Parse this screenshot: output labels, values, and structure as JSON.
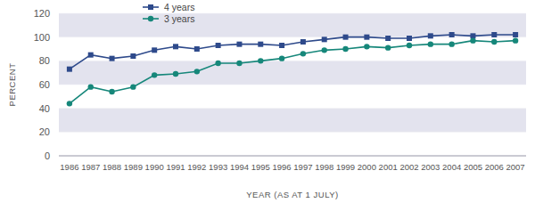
{
  "chart_data": {
    "type": "line",
    "x_label": "YEAR (AS AT 1 JULY)",
    "y_label": "PERCENT",
    "categories": [
      "1986",
      "1987",
      "1988",
      "1989",
      "1990",
      "1991",
      "1992",
      "1993",
      "1994",
      "1995",
      "1996",
      "1997",
      "1998",
      "1999",
      "2000",
      "2001",
      "2002",
      "2003",
      "2004",
      "2005",
      "2006",
      "2007"
    ],
    "series": [
      {
        "name": "4 years",
        "color": "#2e4a8b",
        "marker": "square",
        "line_style": "solid",
        "values": [
          73,
          85,
          82,
          84,
          89,
          92,
          90,
          93,
          94,
          94,
          93,
          96,
          98,
          100,
          100,
          99,
          99,
          101,
          102,
          101,
          102,
          102
        ]
      },
      {
        "name": "3 years",
        "color": "#16877a",
        "marker": "circle",
        "line_style": "solid",
        "values": [
          44,
          58,
          54,
          58,
          68,
          69,
          71,
          78,
          78,
          80,
          82,
          86,
          89,
          90,
          92,
          91,
          93,
          94,
          94,
          97,
          96,
          97
        ]
      }
    ],
    "ylim": [
      0,
      120
    ],
    "yticks": [
      0,
      20,
      40,
      60,
      80,
      100,
      120
    ],
    "grid": true,
    "legend": "upper left"
  }
}
